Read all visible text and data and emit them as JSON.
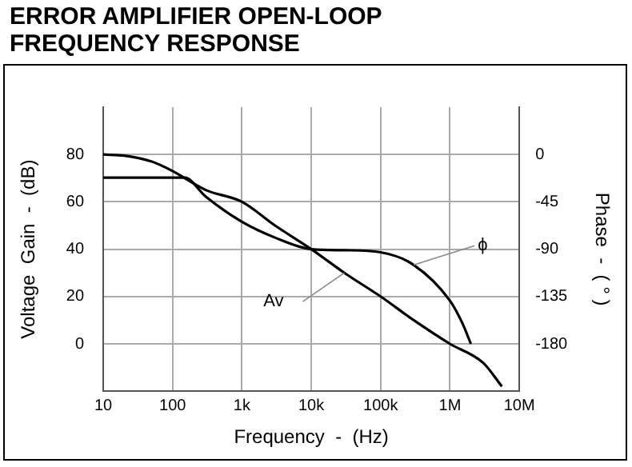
{
  "chart_data": {
    "type": "line",
    "title": "ERROR AMPLIFIER OPEN-LOOP FREQUENCY RESPONSE",
    "xlabel": "Frequency  -  (Hz)",
    "ylabel": "Voltage  Gain  -  (dB)",
    "y2label": "Phase  -  ( ° )",
    "series": [
      {
        "name": "Av",
        "color": "#000000",
        "x": [
          10,
          20,
          50,
          100,
          150,
          300,
          1000,
          3000,
          10000,
          30000,
          100000,
          300000,
          1000000,
          3000000,
          5600000
        ],
        "values": [
          80,
          79.5,
          77,
          73,
          70,
          65,
          60,
          50,
          40,
          30,
          20,
          10,
          0,
          -8,
          -18
        ]
      },
      {
        "name": "ϕ",
        "color": "#000000",
        "axis": "y2",
        "x": [
          10,
          50,
          150,
          300,
          1000,
          3000,
          10000,
          30000,
          100000,
          300000,
          1000000,
          1500000,
          2000000
        ],
        "values": [
          -22,
          -22,
          -22,
          -40,
          -64,
          -79,
          -90,
          -91,
          -93,
          -105,
          -139,
          -160,
          -180
        ]
      }
    ],
    "xlim": [
      10,
      10000000
    ],
    "xticks": [
      {
        "value": 10,
        "label": "10"
      },
      {
        "value": 100,
        "label": "100"
      },
      {
        "value": 1000,
        "label": "1k"
      },
      {
        "value": 10000,
        "label": "10k"
      },
      {
        "value": 100000,
        "label": "100k"
      },
      {
        "value": 1000000,
        "label": "1M"
      },
      {
        "value": 10000000,
        "label": "10M"
      }
    ],
    "ylim": [
      -20,
      100
    ],
    "yticks": [
      0,
      20,
      40,
      60,
      80
    ],
    "y2lim": [
      -225,
      45
    ],
    "y2ticks": [
      0,
      -45,
      -90,
      -135,
      -180
    ],
    "log": "x",
    "grid": true,
    "legend": false,
    "marker": "none",
    "line_style": "solid"
  }
}
